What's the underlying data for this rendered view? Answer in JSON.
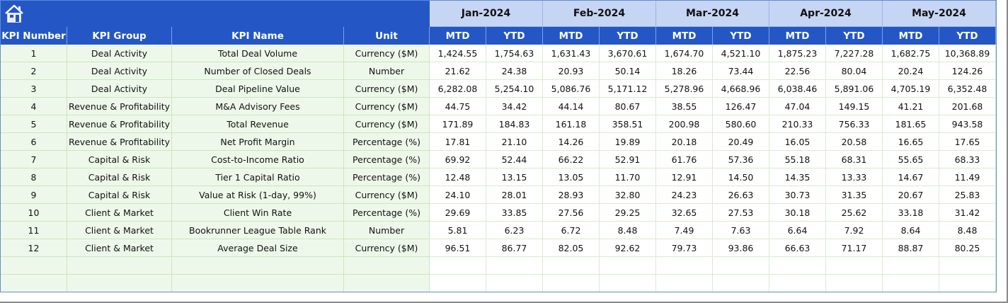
{
  "months": [
    "Jan-2024",
    "Feb-2024",
    "Mar-2024",
    "Apr-2024",
    "May-2024"
  ],
  "headers": {
    "kpi_number": "KPI Number",
    "kpi_group": "KPI Group",
    "kpi_name": "KPI Name",
    "unit": "Unit",
    "mtd": "MTD",
    "ytd": "YTD"
  },
  "rows": [
    {
      "num": "1",
      "group": "Deal Activity",
      "name": "Total Deal Volume",
      "unit": "Currency ($M)",
      "values": [
        "1,424.55",
        "1,754.63",
        "1,631.43",
        "3,670.61",
        "1,674.70",
        "4,521.10",
        "1,875.23",
        "7,227.28",
        "1,682.75",
        "10,368.89"
      ]
    },
    {
      "num": "2",
      "group": "Deal Activity",
      "name": "Number of Closed Deals",
      "unit": "Number",
      "values": [
        "21.62",
        "24.38",
        "20.93",
        "50.14",
        "18.26",
        "73.44",
        "22.56",
        "80.04",
        "20.24",
        "124.26"
      ]
    },
    {
      "num": "3",
      "group": "Deal Activity",
      "name": "Deal Pipeline Value",
      "unit": "Currency ($M)",
      "values": [
        "6,282.08",
        "5,254.10",
        "5,086.76",
        "5,171.12",
        "5,278.96",
        "4,668.96",
        "6,038.46",
        "5,891.06",
        "4,705.19",
        "6,352.48"
      ]
    },
    {
      "num": "4",
      "group": "Revenue & Profitability",
      "name": "M&A Advisory Fees",
      "unit": "Currency ($M)",
      "values": [
        "44.75",
        "34.42",
        "44.14",
        "80.67",
        "38.55",
        "126.47",
        "47.04",
        "149.15",
        "41.21",
        "201.68"
      ]
    },
    {
      "num": "5",
      "group": "Revenue & Profitability",
      "name": "Total Revenue",
      "unit": "Currency ($M)",
      "values": [
        "171.89",
        "184.83",
        "161.18",
        "358.51",
        "200.98",
        "580.60",
        "210.33",
        "756.33",
        "181.65",
        "943.58"
      ]
    },
    {
      "num": "6",
      "group": "Revenue & Profitability",
      "name": "Net Profit Margin",
      "unit": "Percentage (%)",
      "values": [
        "17.81",
        "21.10",
        "14.26",
        "19.89",
        "20.18",
        "20.49",
        "16.05",
        "20.58",
        "16.65",
        "17.65"
      ]
    },
    {
      "num": "7",
      "group": "Capital & Risk",
      "name": "Cost-to-Income Ratio",
      "unit": "Percentage (%)",
      "values": [
        "69.92",
        "52.44",
        "66.22",
        "52.91",
        "61.76",
        "57.36",
        "55.18",
        "68.31",
        "55.65",
        "68.33"
      ]
    },
    {
      "num": "8",
      "group": "Capital & Risk",
      "name": "Tier 1 Capital Ratio",
      "unit": "Percentage (%)",
      "values": [
        "12.48",
        "13.15",
        "13.05",
        "11.70",
        "12.91",
        "14.50",
        "14.35",
        "13.33",
        "14.67",
        "11.49"
      ]
    },
    {
      "num": "9",
      "group": "Capital & Risk",
      "name": "Value at Risk (1-day, 99%)",
      "unit": "Currency ($M)",
      "values": [
        "24.10",
        "28.01",
        "28.93",
        "32.80",
        "24.23",
        "26.63",
        "30.73",
        "31.35",
        "20.67",
        "25.83"
      ]
    },
    {
      "num": "10",
      "group": "Client & Market",
      "name": "Client Win Rate",
      "unit": "Percentage (%)",
      "values": [
        "29.69",
        "33.85",
        "27.56",
        "29.25",
        "32.65",
        "27.53",
        "30.18",
        "25.62",
        "33.18",
        "31.42"
      ]
    },
    {
      "num": "11",
      "group": "Client & Market",
      "name": "Bookrunner League Table Rank",
      "unit": "Number",
      "values": [
        "5.81",
        "6.23",
        "6.72",
        "8.48",
        "7.49",
        "7.63",
        "6.64",
        "7.92",
        "8.64",
        "8.48"
      ]
    },
    {
      "num": "12",
      "group": "Client & Market",
      "name": "Average Deal Size",
      "unit": "Currency ($M)",
      "values": [
        "96.51",
        "86.77",
        "82.05",
        "92.62",
        "79.73",
        "93.86",
        "66.63",
        "71.17",
        "88.87",
        "80.25"
      ]
    }
  ],
  "empty_rows": 2,
  "icons": {
    "home": "home-icon"
  },
  "colors": {
    "header_blue": "#2457c5",
    "month_band": "#c6d5f4",
    "row_tint": "#eef8ea",
    "grid_green": "#c9e6c0"
  }
}
